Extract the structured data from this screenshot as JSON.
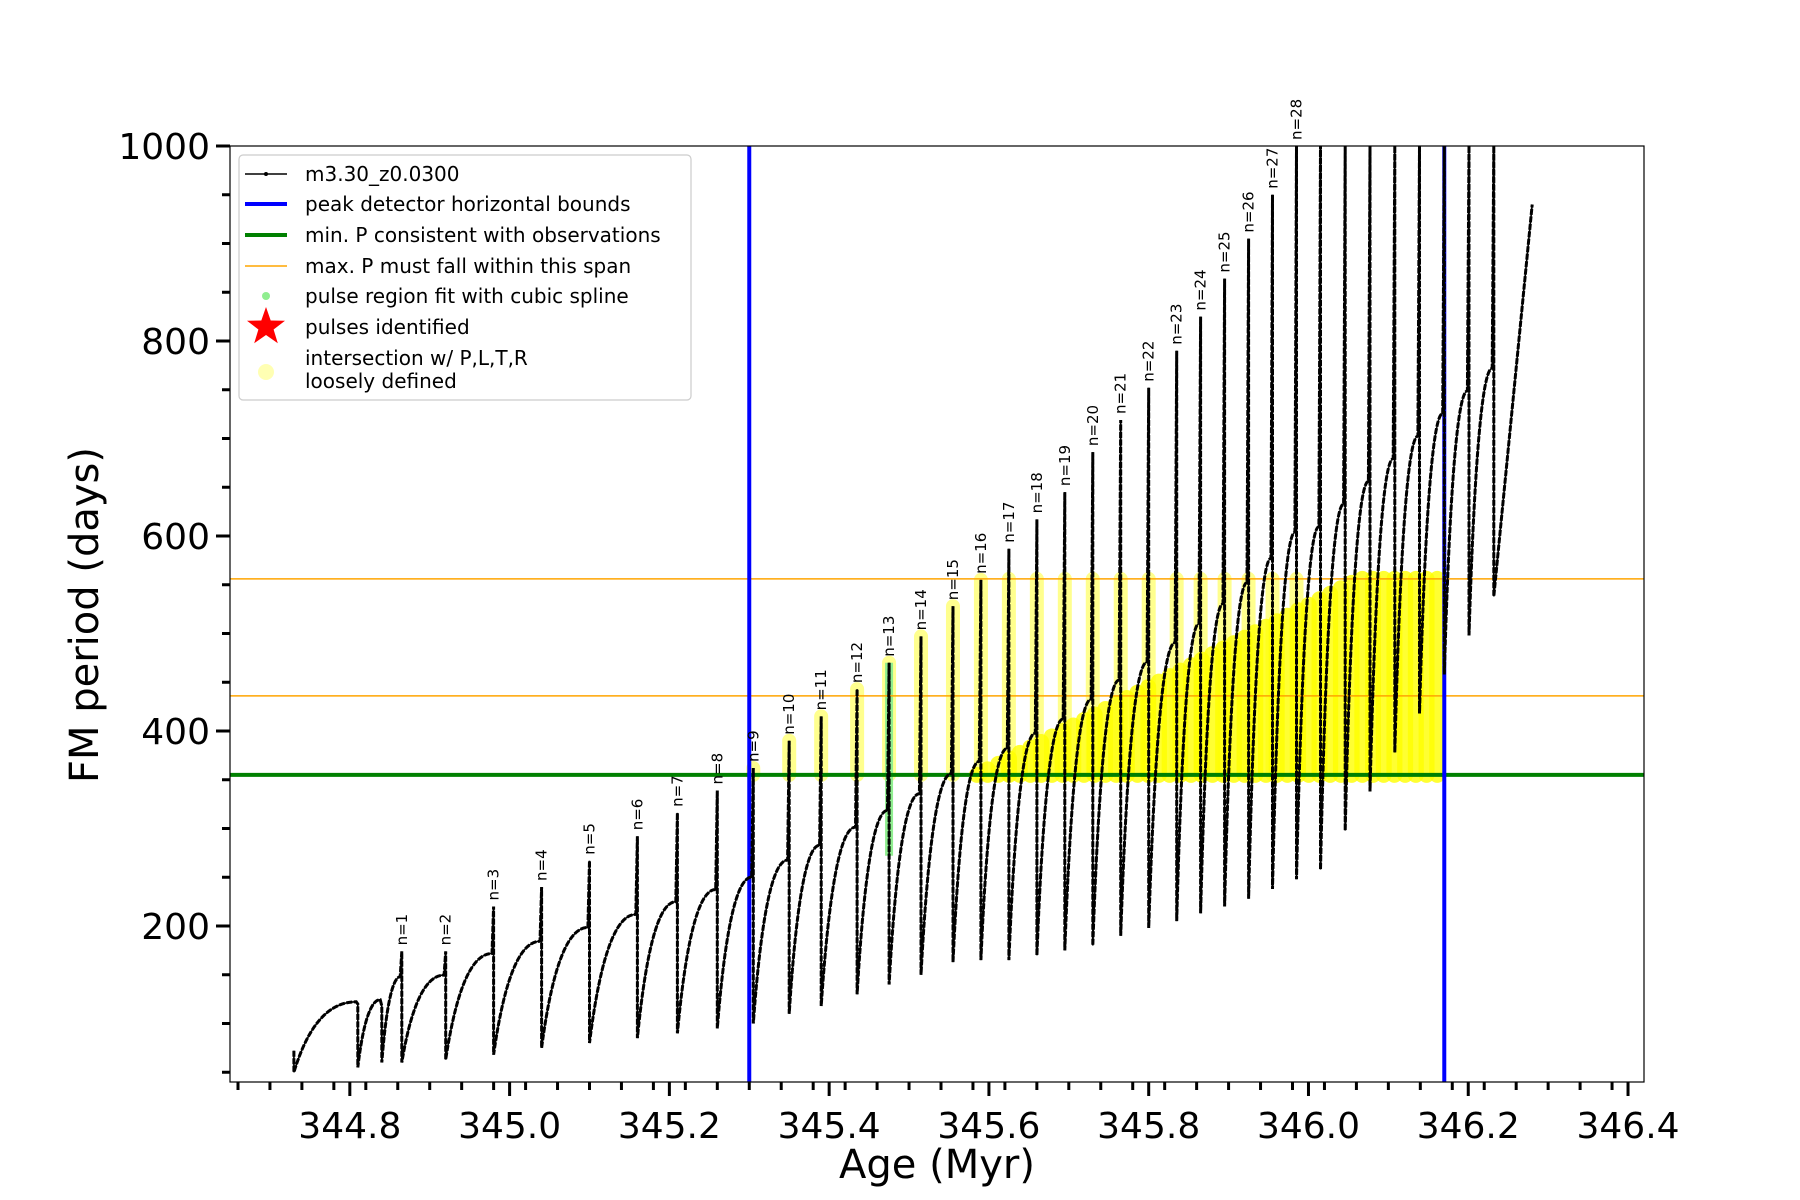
{
  "chart_data": {
    "type": "line",
    "xlabel": "Age (Myr)",
    "ylabel": "FM period (days)",
    "xlim": [
      344.65,
      346.42
    ],
    "ylim": [
      40,
      1000
    ],
    "x_ticks": [
      344.8,
      345.0,
      345.2,
      345.4,
      345.6,
      345.8,
      346.0,
      346.2,
      346.4
    ],
    "x_tick_labels": [
      "344.8",
      "345.0",
      "345.2",
      "345.4",
      "345.6",
      "345.8",
      "346.0",
      "346.2",
      "346.4"
    ],
    "y_ticks": [
      200,
      400,
      600,
      800,
      1000
    ],
    "y_tick_labels": [
      "200",
      "400",
      "600",
      "800",
      "1000"
    ],
    "legend_position": "top-left",
    "legend": [
      {
        "label": "m3.30_z0.0300",
        "kind": "line-marker",
        "color": "#000000"
      },
      {
        "label": "peak detector horizontal bounds",
        "kind": "line",
        "color": "#0000ff"
      },
      {
        "label": "min. P consistent with observations",
        "kind": "line",
        "color": "#008000"
      },
      {
        "label": "max. P must fall within this span",
        "kind": "thin-line",
        "color": "#ffa500"
      },
      {
        "label": "pulse region fit with cubic spline",
        "kind": "dot",
        "color": "#90ee90"
      },
      {
        "label": "pulses identified",
        "kind": "star",
        "color": "#ff0000"
      },
      {
        "label": "intersection w/ P,L,T,R",
        "label2": "loosely defined",
        "kind": "circle",
        "color": "#ffffb3"
      }
    ],
    "vertical_lines": [
      {
        "x": 345.3,
        "color": "#0000ff"
      },
      {
        "x": 346.17,
        "color": "#0000ff"
      }
    ],
    "horizontal_lines": [
      {
        "y": 355,
        "color": "#008000",
        "width": 4
      },
      {
        "y": 436,
        "color": "#ffa500",
        "width": 1.5
      },
      {
        "y": 556,
        "color": "#ffa500",
        "width": 1.5
      }
    ],
    "pulses": [
      {
        "n": "",
        "age": 344.81,
        "peak": 120,
        "low": 55
      },
      {
        "n": "",
        "age": 344.84,
        "peak": 118,
        "low": 60
      },
      {
        "n": "n=1",
        "age": 344.865,
        "peak": 174,
        "low": 60
      },
      {
        "n": "n=2",
        "age": 344.92,
        "peak": 174,
        "low": 63
      },
      {
        "n": "n=3",
        "age": 344.98,
        "peak": 220,
        "low": 68
      },
      {
        "n": "n=4",
        "age": 345.04,
        "peak": 240,
        "low": 75
      },
      {
        "n": "n=5",
        "age": 345.1,
        "peak": 267,
        "low": 80
      },
      {
        "n": "n=6",
        "age": 345.16,
        "peak": 292,
        "low": 85
      },
      {
        "n": "n=7",
        "age": 345.21,
        "peak": 316,
        "low": 90
      },
      {
        "n": "n=8",
        "age": 345.26,
        "peak": 339,
        "low": 95
      },
      {
        "n": "n=9",
        "age": 345.305,
        "peak": 362,
        "low": 100
      },
      {
        "n": "n=10",
        "age": 345.35,
        "peak": 390,
        "low": 110
      },
      {
        "n": "n=11",
        "age": 345.39,
        "peak": 415,
        "low": 118
      },
      {
        "n": "n=12",
        "age": 345.435,
        "peak": 443,
        "low": 130
      },
      {
        "n": "n=13",
        "age": 345.475,
        "peak": 470,
        "low": 140
      },
      {
        "n": "n=14",
        "age": 345.515,
        "peak": 497,
        "low": 150
      },
      {
        "n": "n=15",
        "age": 345.555,
        "peak": 528,
        "low": 163
      },
      {
        "n": "n=16",
        "age": 345.59,
        "peak": 555,
        "low": 165
      },
      {
        "n": "n=17",
        "age": 345.625,
        "peak": 587,
        "low": 165
      },
      {
        "n": "n=18",
        "age": 345.66,
        "peak": 617,
        "low": 170
      },
      {
        "n": "n=19",
        "age": 345.695,
        "peak": 645,
        "low": 175
      },
      {
        "n": "n=20",
        "age": 345.73,
        "peak": 686,
        "low": 180
      },
      {
        "n": "n=21",
        "age": 345.765,
        "peak": 719,
        "low": 190
      },
      {
        "n": "n=22",
        "age": 345.8,
        "peak": 752,
        "low": 198
      },
      {
        "n": "n=23",
        "age": 345.835,
        "peak": 790,
        "low": 205
      },
      {
        "n": "n=24",
        "age": 345.865,
        "peak": 825,
        "low": 213
      },
      {
        "n": "n=25",
        "age": 345.895,
        "peak": 864,
        "low": 220
      },
      {
        "n": "n=26",
        "age": 345.925,
        "peak": 905,
        "low": 228
      },
      {
        "n": "n=27",
        "age": 345.955,
        "peak": 950,
        "low": 238
      },
      {
        "n": "n=28",
        "age": 345.985,
        "peak": 1000,
        "low": 248
      }
    ]
  }
}
